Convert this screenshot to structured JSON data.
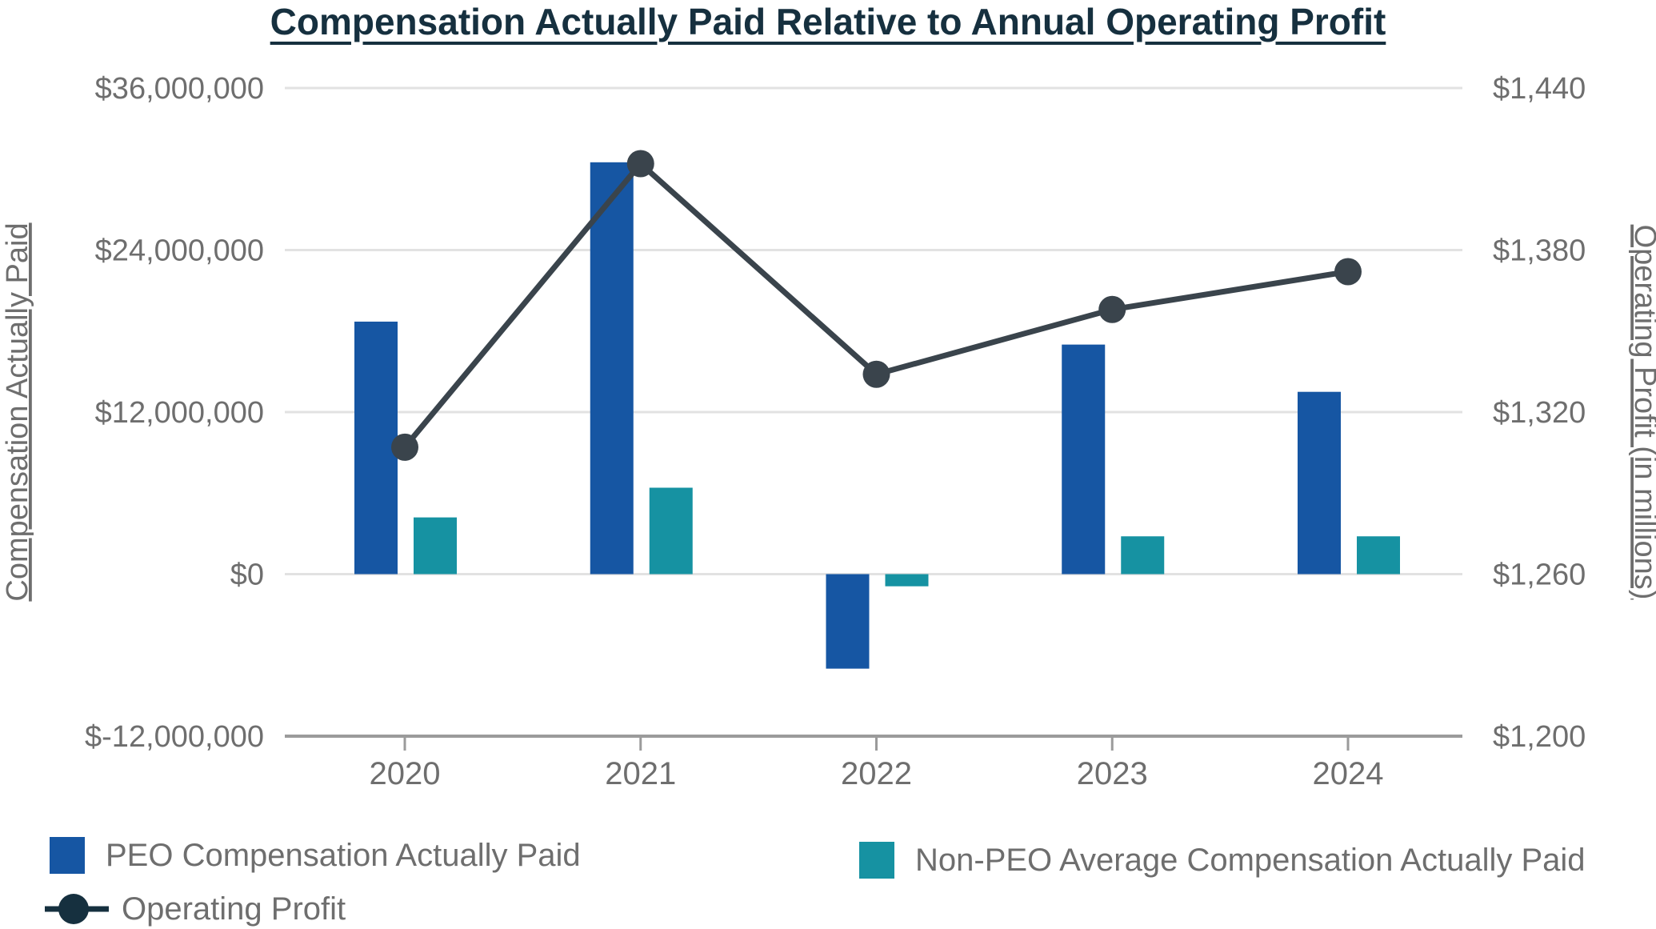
{
  "chart_data": {
    "type": "combo-bar-line",
    "title": "Compensation Actually Paid Relative to Annual Operating Profit",
    "categories": [
      "2020",
      "2021",
      "2022",
      "2023",
      "2024"
    ],
    "series": [
      {
        "name": "PEO Compensation Actually Paid",
        "type": "bar",
        "axis": "left",
        "color": "#1656A3",
        "values": [
          18700000,
          30500000,
          -7000000,
          17000000,
          13500000
        ]
      },
      {
        "name": "Non-PEO Average Compensation Actually Paid",
        "type": "bar",
        "axis": "left",
        "color": "#1692A2",
        "values": [
          4200000,
          6400000,
          -900000,
          2800000,
          2800000
        ]
      },
      {
        "name": "Operating Profit",
        "type": "line",
        "axis": "right",
        "color": "#3A444C",
        "marker": "circle",
        "unit": "USD millions",
        "values": [
          1307,
          1412,
          1334,
          1358,
          1372
        ]
      }
    ],
    "left_axis": {
      "title": "Compensation Actually Paid",
      "min": -12000000,
      "max": 36000000,
      "tick_step": 12000000,
      "ticks": [
        {
          "value": 36000000,
          "label": "$36,000,000"
        },
        {
          "value": 24000000,
          "label": "$24,000,000"
        },
        {
          "value": 12000000,
          "label": "$12,000,000"
        },
        {
          "value": 0,
          "label": "$0"
        },
        {
          "value": -12000000,
          "label": "$-12,000,000"
        }
      ]
    },
    "right_axis": {
      "title": "Operating Profit (in millions)",
      "min": 1200,
      "max": 1440,
      "tick_step": 60,
      "ticks": [
        {
          "value": 1440,
          "label": "$1,440"
        },
        {
          "value": 1380,
          "label": "$1,380"
        },
        {
          "value": 1320,
          "label": "$1,320"
        },
        {
          "value": 1260,
          "label": "$1,260"
        },
        {
          "value": 1200,
          "label": "$1,200"
        }
      ]
    },
    "grid": true,
    "legend_position": "bottom-left-two-columns"
  },
  "colors": {
    "title_text": "#16303F",
    "axis_text": "#6E6E6E",
    "gridline": "#E2E2E2",
    "axis_line": "#9B9B9B",
    "peo_bar": "#1656A3",
    "non_peo_bar": "#1692A2",
    "operating_line": "#3A444C",
    "legend_marker_dark": "#16303F"
  }
}
